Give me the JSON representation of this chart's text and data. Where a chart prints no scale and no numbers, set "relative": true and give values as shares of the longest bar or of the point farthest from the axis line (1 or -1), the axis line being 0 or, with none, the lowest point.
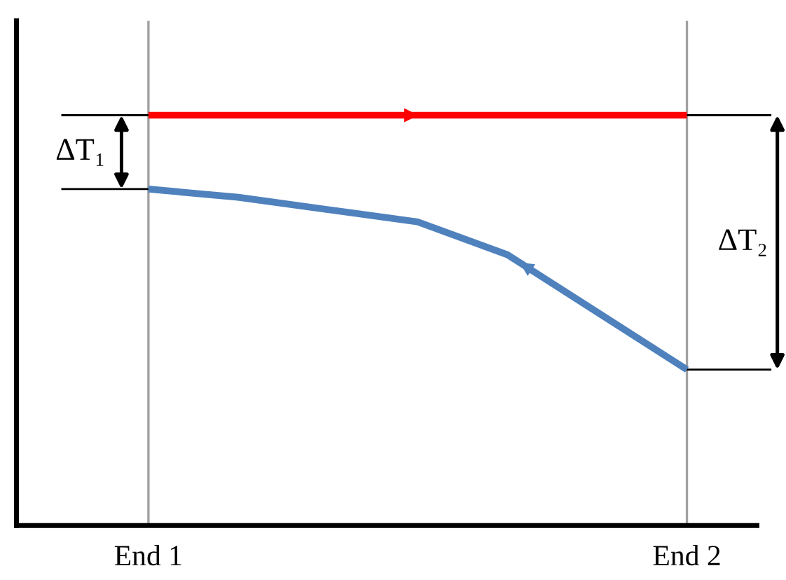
{
  "chart_data": {
    "type": "line",
    "relative": true,
    "categories": [
      "End 1",
      null,
      null,
      null,
      null,
      null,
      "End 2"
    ],
    "tick_labels": "x",
    "grid": "x",
    "marker": "none",
    "line_style": "solid",
    "series": [
      {
        "color": "#ff0000",
        "values": [
          1,
          1,
          1,
          1,
          1,
          1,
          1
        ]
      },
      {
        "color": "#4f81bd",
        "values": [
          0.82,
          0.8,
          0.77,
          0.74,
          0.66,
          0.52,
          0.38
        ]
      }
    ],
    "annotations": [
      "ΔT₁",
      "ΔT₂"
    ]
  }
}
